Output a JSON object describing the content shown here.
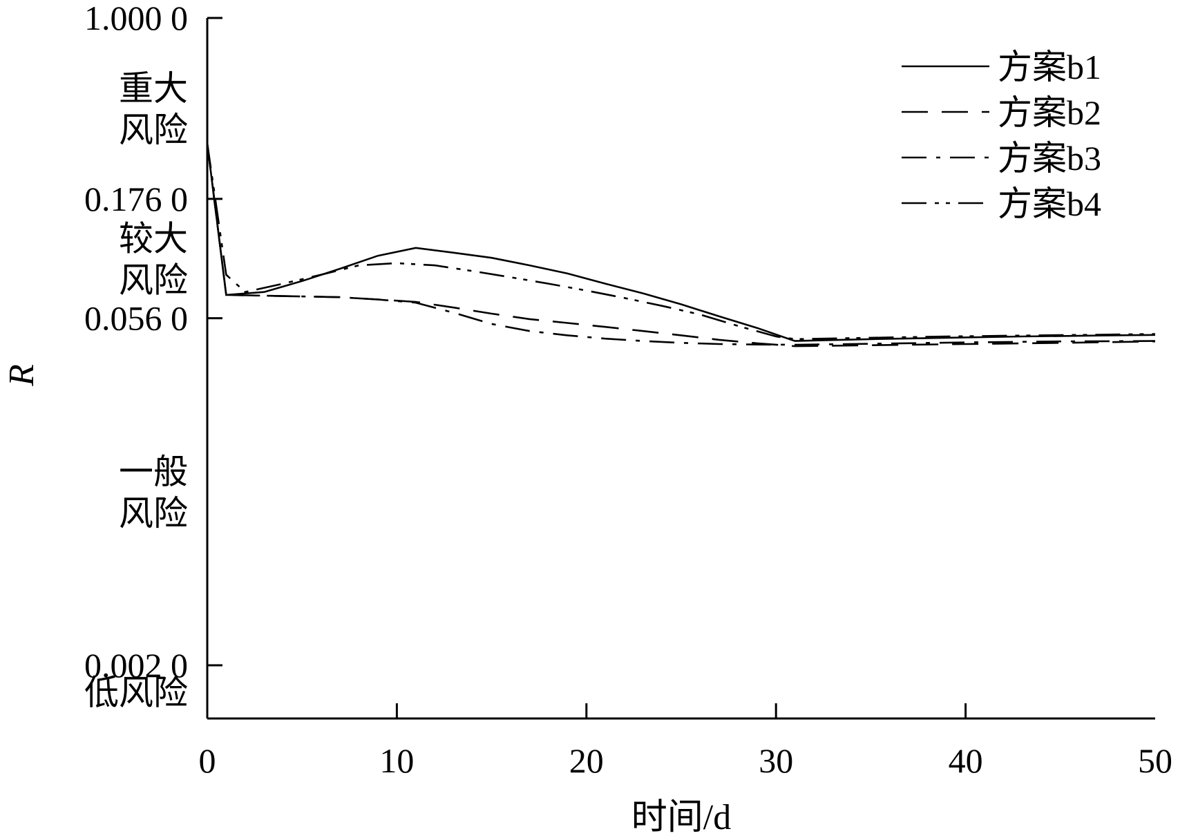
{
  "chart_data": {
    "type": "line",
    "title": "",
    "xlabel": "时间/d",
    "ylabel": "R",
    "xlim": [
      0,
      50
    ],
    "x_ticks": [
      "0",
      "10",
      "20",
      "30",
      "40",
      "50"
    ],
    "y_scale": "log",
    "ylim": [
      0.0012,
      1.0
    ],
    "y_ticks": [
      {
        "value": 1.0,
        "label": "1.000 0"
      },
      {
        "value": 0.176,
        "label": "0.176 0"
      },
      {
        "value": 0.056,
        "label": "0.056 0"
      },
      {
        "value": 0.002,
        "label": "0.002 0"
      }
    ],
    "regions": [
      {
        "lines": [
          "重大",
          "风险"
        ],
        "y_from": 0.176,
        "y_to": 1.0
      },
      {
        "lines": [
          "较大",
          "风险"
        ],
        "y_from": 0.056,
        "y_to": 0.176
      },
      {
        "lines": [
          "一般",
          "风险"
        ],
        "y_from": 0.002,
        "y_to": 0.056
      },
      {
        "lines": [
          "低风险"
        ],
        "y_from": 0.0012,
        "y_to": 0.002
      }
    ],
    "legend_position": "top-right",
    "grid": false,
    "series": [
      {
        "name": "方案b1",
        "dash": "solid",
        "x": [
          0,
          1,
          3,
          5,
          7,
          9,
          11,
          13,
          15,
          17,
          19,
          21,
          23,
          25,
          27,
          29,
          31,
          33,
          35,
          37,
          39,
          41,
          43,
          45,
          47,
          49,
          50
        ],
        "y": [
          0.3,
          0.07,
          0.072,
          0.08,
          0.09,
          0.102,
          0.11,
          0.105,
          0.1,
          0.093,
          0.086,
          0.078,
          0.071,
          0.064,
          0.057,
          0.051,
          0.045,
          0.0454,
          0.0458,
          0.0461,
          0.0464,
          0.0467,
          0.047,
          0.0472,
          0.0474,
          0.0476,
          0.0477
        ]
      },
      {
        "name": "方案b2",
        "dash": "dash",
        "x": [
          0,
          1,
          3,
          5,
          7,
          9,
          11,
          13,
          15,
          17,
          19,
          21,
          23,
          25,
          27,
          29,
          31,
          35,
          40,
          45,
          50
        ],
        "y": [
          0.3,
          0.07,
          0.0695,
          0.069,
          0.0685,
          0.067,
          0.0655,
          0.062,
          0.0585,
          0.0555,
          0.0535,
          0.0515,
          0.0495,
          0.0475,
          0.0455,
          0.044,
          0.0428,
          0.0432,
          0.0437,
          0.0442,
          0.0448
        ]
      },
      {
        "name": "方案b3",
        "dash": "dashdot",
        "x": [
          0,
          1,
          3,
          5,
          7,
          9,
          11,
          13,
          15,
          17,
          19,
          21,
          23,
          25,
          27,
          29,
          31,
          35,
          40,
          45,
          50
        ],
        "y": [
          0.3,
          0.07,
          0.0695,
          0.069,
          0.0685,
          0.067,
          0.065,
          0.059,
          0.053,
          0.0495,
          0.0475,
          0.046,
          0.045,
          0.0442,
          0.0437,
          0.0435,
          0.0434,
          0.0438,
          0.0444,
          0.0448,
          0.045
        ]
      },
      {
        "name": "方案b4",
        "dash": "dashdotdot",
        "x": [
          0,
          1,
          2,
          4,
          6,
          8,
          10,
          12,
          14,
          16,
          18,
          20,
          22,
          24,
          26,
          28,
          30,
          31,
          33,
          35,
          37,
          39,
          41,
          43,
          45,
          47,
          49,
          50
        ],
        "y": [
          0.3,
          0.085,
          0.072,
          0.078,
          0.085,
          0.093,
          0.095,
          0.093,
          0.088,
          0.083,
          0.078,
          0.073,
          0.068,
          0.063,
          0.058,
          0.052,
          0.047,
          0.0458,
          0.0461,
          0.0464,
          0.0467,
          0.047,
          0.0472,
          0.0474,
          0.0476,
          0.0478,
          0.048,
          0.0481
        ]
      }
    ]
  }
}
